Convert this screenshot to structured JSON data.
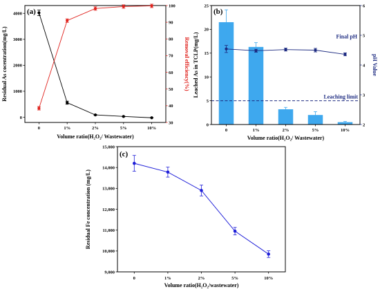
{
  "colors": {
    "black": "#000000",
    "red": "#e0221d",
    "navy": "#1c2a80",
    "bar": "#3ea8ee",
    "blue": "#1f1fd8"
  },
  "chart_data": [
    {
      "panel": "(a)",
      "type": "line",
      "categories": [
        "0",
        "1%",
        "2%",
        "5%",
        "10%"
      ],
      "xlabel": "Volume ratio(H₂O₂/ Wastewater)",
      "ylabel": "Residual As cocentration(mg/L)",
      "y2label": "Removal efficiency(%)",
      "ylim": [
        -200,
        4300
      ],
      "y2lim": [
        30,
        100
      ],
      "yticks": [
        0,
        1000,
        2000,
        3000,
        4000
      ],
      "y2ticks": [
        30,
        40,
        50,
        60,
        70,
        80,
        90,
        100
      ],
      "series": [
        {
          "axis": "left",
          "color": "black",
          "values": [
            4020,
            560,
            90,
            30,
            -20
          ],
          "errors": [
            110,
            60,
            15,
            10,
            8
          ]
        },
        {
          "axis": "right",
          "color": "red",
          "values": [
            38.5,
            91,
            98.2,
            99.4,
            99.8
          ]
        }
      ]
    },
    {
      "panel": "(b)",
      "type": "bar",
      "categories": [
        "0",
        "1%",
        "2%",
        "5%",
        "10%"
      ],
      "xlabel": "Volume ratio(H₂O₂/ Wastewater)",
      "ylabel": "Leached As in TCLP(mg/L)",
      "y2label": "pH Value",
      "ylim": [
        0,
        25
      ],
      "y2lim": [
        2,
        6
      ],
      "yticks": [
        0,
        5,
        10,
        15,
        20,
        25
      ],
      "y2ticks": [
        2,
        3,
        4,
        5,
        6
      ],
      "bars": {
        "values": [
          21.5,
          16.3,
          3.2,
          2.0,
          0.5
        ],
        "errors": [
          2.6,
          0.9,
          0.4,
          0.7,
          0.15
        ]
      },
      "line": {
        "name": "Final pH",
        "values": [
          4.54,
          4.48,
          4.52,
          4.5,
          4.36
        ],
        "errors": [
          0.12,
          0.05,
          0.05,
          0.06,
          0.05
        ]
      },
      "limit": {
        "name": "Leaching limit",
        "value": 5
      }
    },
    {
      "panel": "(c)",
      "type": "line",
      "categories": [
        "0",
        "1%",
        "2%",
        "5%",
        "10%"
      ],
      "xlabel": "Volume ratio(H₂O₂/wastewater)",
      "ylabel": "Residual Fe concentration (mg/L)",
      "ylim": [
        9000,
        15000
      ],
      "yticks": [
        9000,
        10000,
        11000,
        12000,
        13000,
        14000,
        15000
      ],
      "ytick_labels": [
        "9,000",
        "10,000",
        "11,000",
        "12,000",
        "13,000",
        "14,000",
        "15,000"
      ],
      "series": [
        {
          "color": "blue",
          "values": [
            14200,
            13780,
            12900,
            10950,
            9850
          ],
          "errors": [
            380,
            240,
            260,
            180,
            160
          ]
        }
      ]
    }
  ]
}
